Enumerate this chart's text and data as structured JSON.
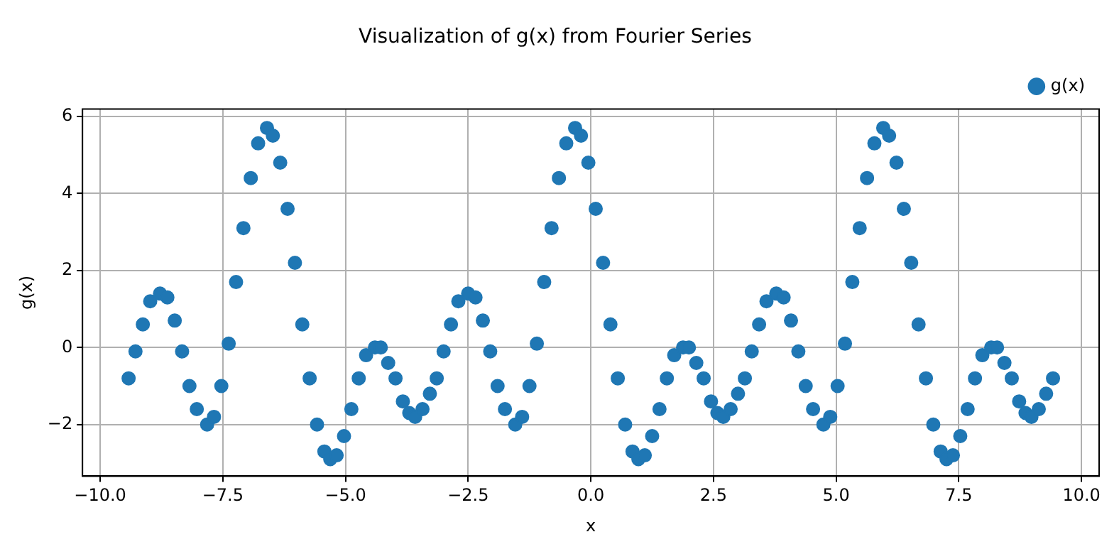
{
  "chart_data": {
    "type": "scatter",
    "title": "Visualization of g(x) from Fourier Series",
    "xlabel": "x",
    "ylabel": "g(x)",
    "x": [
      -9.42,
      -9.28,
      -9.13,
      -8.98,
      -8.78,
      -8.63,
      -8.48,
      -8.33,
      -8.18,
      -8.03,
      -7.82,
      -7.68,
      -7.53,
      -7.38,
      -7.23,
      -7.08,
      -6.93,
      -6.78,
      -6.6,
      -6.48,
      -6.33,
      -6.18,
      -6.03,
      -5.88,
      -5.73,
      -5.58,
      -5.43,
      -5.31,
      -5.18,
      -5.03,
      -4.88,
      -4.73,
      -4.58,
      -4.4,
      -4.28,
      -4.13,
      -3.98,
      -3.83,
      -3.7,
      -3.58,
      -3.43,
      -3.28,
      -3.14,
      -3.0,
      -2.85,
      -2.7,
      -2.5,
      -2.35,
      -2.2,
      -2.05,
      -1.9,
      -1.75,
      -1.54,
      -1.4,
      -1.25,
      -1.1,
      -0.95,
      -0.8,
      -0.65,
      -0.5,
      -0.32,
      -0.2,
      -0.05,
      0.1,
      0.25,
      0.4,
      0.55,
      0.7,
      0.85,
      0.97,
      1.1,
      1.25,
      1.4,
      1.55,
      1.7,
      1.88,
      2.0,
      2.15,
      2.3,
      2.45,
      2.58,
      2.7,
      2.85,
      3.0,
      3.14,
      3.28,
      3.43,
      3.58,
      3.78,
      3.93,
      4.08,
      4.23,
      4.38,
      4.53,
      4.74,
      4.88,
      5.03,
      5.18,
      5.33,
      5.48,
      5.63,
      5.78,
      5.96,
      6.08,
      6.23,
      6.38,
      6.53,
      6.68,
      6.83,
      6.98,
      7.13,
      7.25,
      7.38,
      7.53,
      7.68,
      7.83,
      7.98,
      8.16,
      8.28,
      8.43,
      8.58,
      8.73,
      8.86,
      8.98,
      9.13,
      9.28,
      9.42
    ],
    "series": [
      {
        "name": "g(x)",
        "color": "#1f77b4",
        "values": [
          -0.8,
          -0.1,
          0.6,
          1.2,
          1.4,
          1.3,
          0.7,
          -0.1,
          -1.0,
          -1.6,
          -2.0,
          -1.8,
          -1.0,
          0.1,
          1.7,
          3.1,
          4.4,
          5.3,
          5.7,
          5.5,
          4.8,
          3.6,
          2.2,
          0.6,
          -0.8,
          -2.0,
          -2.7,
          -2.9,
          -2.8,
          -2.3,
          -1.6,
          -0.8,
          -0.2,
          0.0,
          0.0,
          -0.4,
          -0.8,
          -1.4,
          -1.7,
          -1.8,
          -1.6,
          -1.2,
          -0.8,
          -0.1,
          0.6,
          1.2,
          1.4,
          1.3,
          0.7,
          -0.1,
          -1.0,
          -1.6,
          -2.0,
          -1.8,
          -1.0,
          0.1,
          1.7,
          3.1,
          4.4,
          5.3,
          5.7,
          5.5,
          4.8,
          3.6,
          2.2,
          0.6,
          -0.8,
          -2.0,
          -2.7,
          -2.9,
          -2.8,
          -2.3,
          -1.6,
          -0.8,
          -0.2,
          0.0,
          0.0,
          -0.4,
          -0.8,
          -1.4,
          -1.7,
          -1.8,
          -1.6,
          -1.2,
          -0.8,
          -0.1,
          0.6,
          1.2,
          1.4,
          1.3,
          0.7,
          -0.1,
          -1.0,
          -1.6,
          -2.0,
          -1.8,
          -1.0,
          0.1,
          1.7,
          3.1,
          4.4,
          5.3,
          5.7,
          5.5,
          4.8,
          3.6,
          2.2,
          0.6,
          -0.8,
          -2.0,
          -2.7,
          -2.9,
          -2.8,
          -2.3,
          -1.6,
          -0.8,
          -0.2,
          0.0,
          0.0,
          -0.4,
          -0.8,
          -1.4,
          -1.7,
          -1.8,
          -1.6,
          -1.2,
          -0.8
        ]
      }
    ],
    "xlim": [
      -10.36,
      10.36
    ],
    "ylim": [
      -3.34,
      6.19
    ],
    "xticks": [
      {
        "value": -10,
        "label": "−10.0"
      },
      {
        "value": -7.5,
        "label": "−7.5"
      },
      {
        "value": -5,
        "label": "−5.0"
      },
      {
        "value": -2.5,
        "label": "−2.5"
      },
      {
        "value": 0,
        "label": "0.0"
      },
      {
        "value": 2.5,
        "label": "2.5"
      },
      {
        "value": 5,
        "label": "5.0"
      },
      {
        "value": 7.5,
        "label": "7.5"
      },
      {
        "value": 10,
        "label": "10.0"
      }
    ],
    "yticks": [
      {
        "value": -2,
        "label": "−2"
      },
      0,
      2,
      4,
      6
    ],
    "grid": true,
    "legend": "top right",
    "marker": "circle"
  }
}
